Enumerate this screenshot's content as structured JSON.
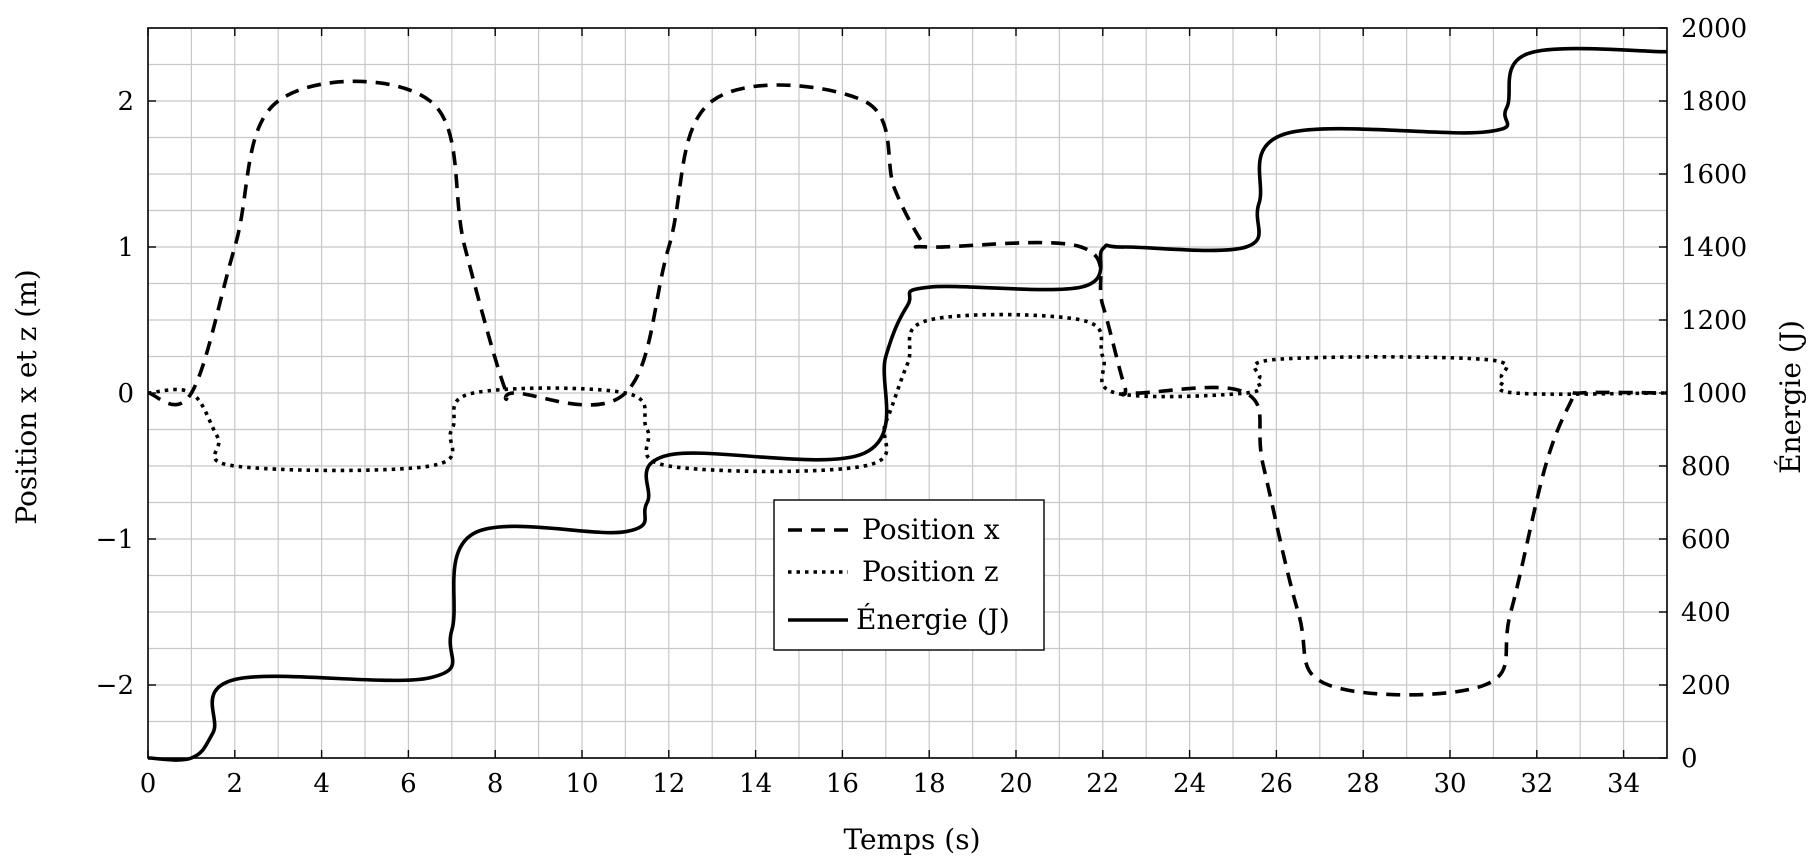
{
  "chart_data": {
    "type": "line",
    "title": "",
    "xlabel": "Temps (s)",
    "ylabel_left": "Position x et z (m)",
    "ylabel_right": "Énergie (J)",
    "xlim": [
      0,
      35
    ],
    "ylim_left": [
      -2.5,
      2.5
    ],
    "ylim_right": [
      0,
      2000
    ],
    "x_ticks": [
      0,
      2,
      4,
      6,
      8,
      10,
      12,
      14,
      16,
      18,
      20,
      22,
      24,
      26,
      28,
      30,
      32,
      34
    ],
    "x_tick_labels": [
      "0",
      "2",
      "4",
      "6",
      "8",
      "10",
      "12",
      "14",
      "16",
      "18",
      "20",
      "22",
      "24",
      "26",
      "28",
      "30",
      "32",
      "34"
    ],
    "y_left_ticks": [
      -2,
      -1,
      0,
      1,
      2
    ],
    "y_left_tick_labels": [
      "−2",
      "−1",
      "0",
      "1",
      "2"
    ],
    "y_right_ticks": [
      0,
      200,
      400,
      600,
      800,
      1000,
      1200,
      1400,
      1600,
      1800,
      2000
    ],
    "y_right_tick_labels": [
      "0",
      "200",
      "400",
      "600",
      "800",
      "1000",
      "1200",
      "1400",
      "1600",
      "1800",
      "2000"
    ],
    "grid": true,
    "legend_position": "center",
    "series": [
      {
        "name": "Position x",
        "axis": "left",
        "style": "dashed",
        "color": "#000000",
        "points": [
          [
            0,
            0
          ],
          [
            1,
            0
          ],
          [
            2,
            1
          ],
          [
            3,
            2
          ],
          [
            6.5,
            2
          ],
          [
            7.3,
            1
          ],
          [
            8.2,
            0.05
          ],
          [
            8.5,
            0
          ],
          [
            11,
            0
          ],
          [
            12,
            1
          ],
          [
            13,
            2
          ],
          [
            16.5,
            2
          ],
          [
            17.2,
            1.4
          ],
          [
            17.8,
            1.05
          ],
          [
            18,
            1
          ],
          [
            21.5,
            1
          ],
          [
            22,
            0.6
          ],
          [
            22.5,
            0.05
          ],
          [
            22.7,
            0
          ],
          [
            25.3,
            0
          ],
          [
            25.7,
            -0.5
          ],
          [
            26.5,
            -1.5
          ],
          [
            27.2,
            -2
          ],
          [
            30.8,
            -2
          ],
          [
            31.4,
            -1.5
          ],
          [
            32.2,
            -0.5
          ],
          [
            32.8,
            -0.05
          ],
          [
            33,
            0
          ],
          [
            35,
            0
          ]
        ]
      },
      {
        "name": "Position z",
        "axis": "left",
        "style": "dotted",
        "color": "#000000",
        "points": [
          [
            0,
            0
          ],
          [
            1,
            0
          ],
          [
            1.6,
            -0.3
          ],
          [
            2,
            -0.5
          ],
          [
            6.5,
            -0.5
          ],
          [
            7,
            -0.25
          ],
          [
            7.5,
            0
          ],
          [
            11,
            0
          ],
          [
            11.5,
            -0.25
          ],
          [
            12,
            -0.5
          ],
          [
            16.5,
            -0.5
          ],
          [
            17,
            -0.2
          ],
          [
            17.5,
            0.2
          ],
          [
            18,
            0.5
          ],
          [
            21.5,
            0.5
          ],
          [
            22,
            0.25
          ],
          [
            22.3,
            0
          ],
          [
            25.3,
            0
          ],
          [
            25.6,
            0.1
          ],
          [
            26,
            0.23
          ],
          [
            30.8,
            0.23
          ],
          [
            31.2,
            0.1
          ],
          [
            31.5,
            0
          ],
          [
            35,
            0
          ]
        ]
      },
      {
        "name": "Énergie (J)",
        "axis": "right",
        "style": "solid",
        "color": "#000000",
        "points": [
          [
            0,
            0
          ],
          [
            1,
            0
          ],
          [
            1.5,
            70
          ],
          [
            2,
            215
          ],
          [
            6.5,
            220
          ],
          [
            7,
            350
          ],
          [
            7.5,
            615
          ],
          [
            11,
            620
          ],
          [
            11.5,
            700
          ],
          [
            12,
            830
          ],
          [
            16.5,
            835
          ],
          [
            17,
            1100
          ],
          [
            17.5,
            1240
          ],
          [
            18,
            1290
          ],
          [
            21.5,
            1290
          ],
          [
            22,
            1395
          ],
          [
            22.5,
            1400
          ],
          [
            25.3,
            1400
          ],
          [
            25.6,
            1520
          ],
          [
            26.2,
            1710
          ],
          [
            30.8,
            1715
          ],
          [
            31.3,
            1780
          ],
          [
            31.8,
            1930
          ],
          [
            35,
            1935
          ]
        ]
      }
    ]
  }
}
